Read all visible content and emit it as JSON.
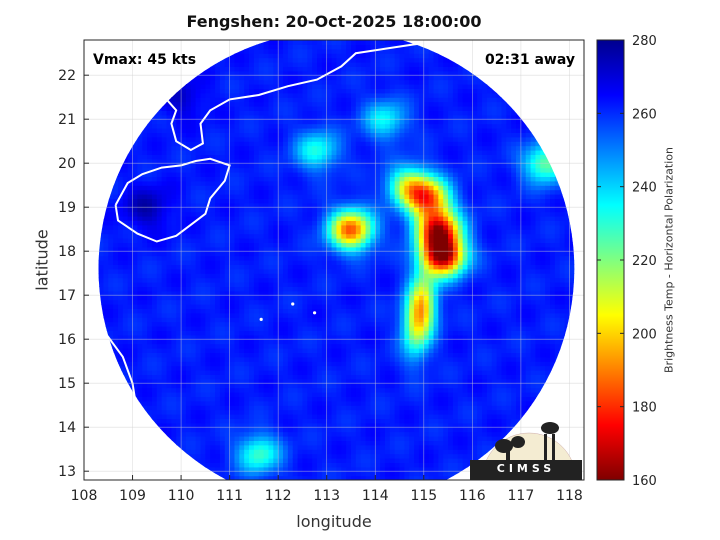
{
  "chart_data": {
    "type": "heatmap",
    "title": "Fengshen: 20-Oct-2025 18:00:00",
    "xlabel": "longitude",
    "ylabel": "latitude",
    "xlim": [
      108,
      118.3
    ],
    "ylim": [
      12.8,
      22.8
    ],
    "xticks": [
      "108",
      "109",
      "110",
      "111",
      "112",
      "113",
      "114",
      "115",
      "116",
      "117",
      "118"
    ],
    "yticks": [
      "13",
      "14",
      "15",
      "16",
      "17",
      "18",
      "19",
      "20",
      "21",
      "22"
    ],
    "grid": true,
    "annotations": {
      "vmax": "Vmax: 45 kts",
      "time_away": "02:31 away"
    },
    "colorbar": {
      "label": "Brightness Temp - Horizontal Polarization",
      "range": [
        160,
        280
      ],
      "ticks": [
        "160",
        "180",
        "200",
        "220",
        "240",
        "260",
        "280"
      ]
    },
    "colormap": [
      "#7f0000",
      "#ff0000",
      "#ff8000",
      "#ffff00",
      "#80ff80",
      "#00ffff",
      "#0080ff",
      "#0000ff",
      "#00008f"
    ],
    "swath_center": [
      113.2,
      17.6
    ],
    "swath_radius_deg": 4.9,
    "background_tb": 262,
    "features": [
      {
        "name": "core",
        "lon": 115.4,
        "lat": 17.9,
        "tb": 165
      },
      {
        "name": "eyewall north",
        "lon": 115.3,
        "lat": 18.5,
        "tb": 178
      },
      {
        "name": "band north",
        "lon": 115.1,
        "lat": 19.2,
        "tb": 195
      },
      {
        "name": "band outer",
        "lon": 114.7,
        "lat": 19.5,
        "tb": 215
      },
      {
        "name": "west cell",
        "lon": 113.5,
        "lat": 18.5,
        "tb": 185
      },
      {
        "name": "south band",
        "lon": 115.0,
        "lat": 16.8,
        "tb": 210
      },
      {
        "name": "southwest tail",
        "lon": 114.8,
        "lat": 16.3,
        "tb": 225
      },
      {
        "name": "northeast cell",
        "lon": 117.5,
        "lat": 20.0,
        "tb": 222
      },
      {
        "name": "north patch",
        "lon": 114.2,
        "lat": 21.0,
        "tb": 235
      },
      {
        "name": "northwest patch",
        "lon": 112.8,
        "lat": 20.3,
        "tb": 232
      },
      {
        "name": "south patch",
        "lon": 111.6,
        "lat": 13.4,
        "tb": 228
      }
    ],
    "cold_regions": [
      {
        "name": "hainan shadow",
        "lon": 109.3,
        "lat": 19.0,
        "tb": 276
      },
      {
        "name": "gulf",
        "lon": 110.0,
        "lat": 21.5,
        "tb": 272
      }
    ]
  },
  "logo": {
    "text": "CIMSS"
  }
}
